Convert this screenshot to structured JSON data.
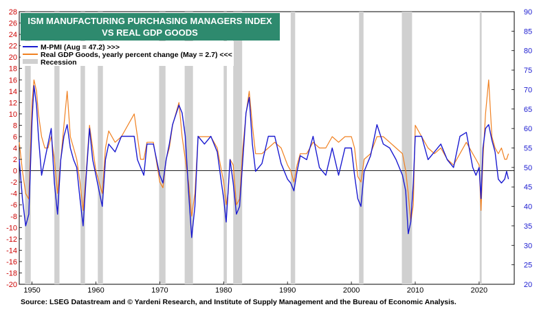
{
  "chart_data": {
    "type": "line",
    "title_lines": [
      "ISM MANUFACTURING PURCHASING MANAGERS INDEX",
      "VS REAL GDP GOODS"
    ],
    "source": "Source: LSEG Datastream and © Yardeni Research, and Institute of Supply Management and the Bureau of Economic Analysis.",
    "x_range": [
      1948,
      2025.5
    ],
    "x_ticks": [
      1950,
      1960,
      1970,
      1980,
      1990,
      2000,
      2010,
      2020
    ],
    "left_axis": {
      "range": [
        -20,
        28
      ],
      "ticks": [
        28,
        26,
        24,
        22,
        20,
        18,
        16,
        14,
        12,
        10,
        8,
        6,
        4,
        2,
        0,
        -2,
        -4,
        -6,
        -8,
        -10,
        -12,
        -14,
        -16,
        -18,
        -20
      ],
      "color": "#cc0000"
    },
    "right_axis": {
      "range": [
        20,
        90
      ],
      "ticks": [
        90,
        85,
        80,
        75,
        70,
        65,
        60,
        55,
        50,
        45,
        40,
        35,
        30,
        25,
        20
      ],
      "color": "#1a1ad0"
    },
    "legend": [
      {
        "label": "M-PMI (Aug = 47.2) >>>",
        "color": "#1a1ad0",
        "kind": "line"
      },
      {
        "label": "Real GDP Goods, yearly percent change (May = 2.7) <<<",
        "color": "#f08020",
        "kind": "line"
      },
      {
        "label": "Recession",
        "color": "#d0d0d0",
        "kind": "box"
      }
    ],
    "recessions": [
      [
        1948.9,
        1949.8
      ],
      [
        1953.5,
        1954.3
      ],
      [
        1957.6,
        1958.3
      ],
      [
        1960.3,
        1961.1
      ],
      [
        1969.9,
        1970.9
      ],
      [
        1973.9,
        1975.2
      ],
      [
        1980.0,
        1980.5
      ],
      [
        1981.5,
        1982.9
      ],
      [
        1990.5,
        1991.2
      ],
      [
        2001.2,
        2001.9
      ],
      [
        2007.9,
        2009.5
      ],
      [
        2020.1,
        2020.4
      ]
    ],
    "series": [
      {
        "name": "M-PMI",
        "axis": "right",
        "color": "#1a1ad0",
        "x": [
          1948.0,
          1948.5,
          1949.0,
          1949.5,
          1950.0,
          1950.3,
          1950.7,
          1951.0,
          1951.5,
          1952.0,
          1952.5,
          1953.0,
          1953.5,
          1954.0,
          1954.5,
          1955.0,
          1955.5,
          1956.0,
          1956.5,
          1957.0,
          1957.5,
          1958.0,
          1958.5,
          1959.0,
          1959.5,
          1960.0,
          1960.5,
          1961.0,
          1961.5,
          1962.0,
          1963.0,
          1964.0,
          1965.0,
          1966.0,
          1966.5,
          1967.0,
          1967.5,
          1968.0,
          1969.0,
          1970.0,
          1970.5,
          1971.0,
          1971.5,
          1972.0,
          1973.0,
          1973.5,
          1974.0,
          1974.5,
          1975.0,
          1975.5,
          1976.0,
          1977.0,
          1978.0,
          1979.0,
          1979.5,
          1980.0,
          1980.4,
          1980.7,
          1981.0,
          1981.5,
          1982.0,
          1982.5,
          1983.0,
          1983.5,
          1984.0,
          1984.5,
          1985.0,
          1986.0,
          1987.0,
          1988.0,
          1989.0,
          1990.0,
          1990.5,
          1991.0,
          1991.5,
          1992.0,
          1993.0,
          1994.0,
          1995.0,
          1996.0,
          1997.0,
          1998.0,
          1999.0,
          2000.0,
          2000.5,
          2001.0,
          2001.5,
          2002.0,
          2003.0,
          2004.0,
          2005.0,
          2006.0,
          2007.0,
          2008.0,
          2008.5,
          2008.9,
          2009.3,
          2009.7,
          2010.0,
          2011.0,
          2012.0,
          2013.0,
          2014.0,
          2015.0,
          2016.0,
          2017.0,
          2018.0,
          2019.0,
          2019.5,
          2020.0,
          2020.3,
          2020.6,
          2021.0,
          2021.5,
          2022.0,
          2022.5,
          2023.0,
          2023.5,
          2024.0,
          2024.3,
          2024.6
        ],
        "y": [
          52,
          42,
          35,
          38,
          62,
          71,
          66,
          58,
          48,
          52,
          56,
          60,
          46,
          38,
          52,
          58,
          61,
          55,
          52,
          50,
          42,
          35,
          48,
          60,
          52,
          48,
          44,
          40,
          52,
          56,
          54,
          58,
          58,
          58,
          52,
          50,
          48,
          56,
          56,
          48,
          46,
          52,
          56,
          61,
          66,
          64,
          58,
          44,
          32,
          40,
          58,
          56,
          58,
          54,
          48,
          42,
          36,
          44,
          52,
          46,
          38,
          40,
          52,
          64,
          68,
          56,
          49,
          51,
          58,
          58,
          51,
          47,
          46,
          44,
          49,
          53,
          52,
          58,
          50,
          48,
          55,
          48,
          55,
          55,
          48,
          42,
          40,
          49,
          53,
          61,
          56,
          55,
          52,
          48,
          44,
          33,
          36,
          46,
          58,
          58,
          52,
          54,
          56,
          52,
          50,
          58,
          59,
          50,
          48,
          50,
          42,
          55,
          60,
          61,
          57,
          54,
          47,
          46,
          47,
          49,
          47
        ]
      },
      {
        "name": "Real GDP Goods",
        "axis": "left",
        "color": "#f08020",
        "x": [
          1948.0,
          1948.5,
          1949.0,
          1949.5,
          1950.0,
          1950.3,
          1950.7,
          1951.0,
          1951.5,
          1952.0,
          1952.5,
          1953.0,
          1953.5,
          1954.0,
          1954.5,
          1955.0,
          1955.5,
          1956.0,
          1956.5,
          1957.0,
          1957.5,
          1958.0,
          1958.5,
          1959.0,
          1959.5,
          1960.0,
          1960.5,
          1961.0,
          1961.5,
          1962.0,
          1963.0,
          1964.0,
          1965.0,
          1966.0,
          1966.5,
          1967.0,
          1967.5,
          1968.0,
          1969.0,
          1970.0,
          1970.5,
          1971.0,
          1971.5,
          1972.0,
          1973.0,
          1973.5,
          1974.0,
          1974.5,
          1975.0,
          1975.5,
          1976.0,
          1977.0,
          1978.0,
          1979.0,
          1979.5,
          1980.0,
          1980.4,
          1980.7,
          1981.0,
          1981.5,
          1982.0,
          1982.5,
          1983.0,
          1983.5,
          1984.0,
          1984.5,
          1985.0,
          1986.0,
          1987.0,
          1988.0,
          1989.0,
          1990.0,
          1990.5,
          1991.0,
          1991.5,
          1992.0,
          1993.0,
          1994.0,
          1995.0,
          1996.0,
          1997.0,
          1998.0,
          1999.0,
          2000.0,
          2000.5,
          2001.0,
          2001.5,
          2002.0,
          2003.0,
          2004.0,
          2005.0,
          2006.0,
          2007.0,
          2008.0,
          2008.5,
          2008.9,
          2009.3,
          2009.7,
          2010.0,
          2011.0,
          2012.0,
          2013.0,
          2014.0,
          2015.0,
          2016.0,
          2017.0,
          2018.0,
          2019.0,
          2019.5,
          2020.0,
          2020.3,
          2020.6,
          2021.0,
          2021.5,
          2022.0,
          2022.5,
          2023.0,
          2023.5,
          2024.0,
          2024.3,
          2024.6
        ],
        "y": [
          5,
          0,
          -4,
          -5,
          12,
          16,
          14,
          10,
          6,
          4,
          4,
          6,
          2,
          -4,
          2,
          8,
          14,
          6,
          4,
          2,
          -2,
          -7,
          0,
          8,
          4,
          0,
          -2,
          -4,
          4,
          7,
          5,
          6,
          8,
          10,
          6,
          2,
          2,
          5,
          5,
          -2,
          -3,
          2,
          4,
          8,
          12,
          6,
          2,
          -2,
          -8,
          -4,
          6,
          6,
          6,
          4,
          1,
          -2,
          -6,
          -4,
          2,
          1,
          -6,
          -5,
          4,
          10,
          14,
          8,
          3,
          3,
          4,
          5,
          4,
          1,
          0,
          -2,
          1,
          3,
          3,
          5,
          4,
          4,
          6,
          5,
          6,
          6,
          4,
          -1,
          -2,
          2,
          3,
          6,
          6,
          5,
          4,
          3,
          0,
          -4,
          -9,
          -6,
          8,
          6,
          4,
          3,
          4,
          2,
          1,
          3,
          5,
          3,
          2,
          1,
          -7,
          2,
          10,
          16,
          6,
          4,
          3,
          4,
          2,
          2,
          3
        ]
      }
    ]
  }
}
